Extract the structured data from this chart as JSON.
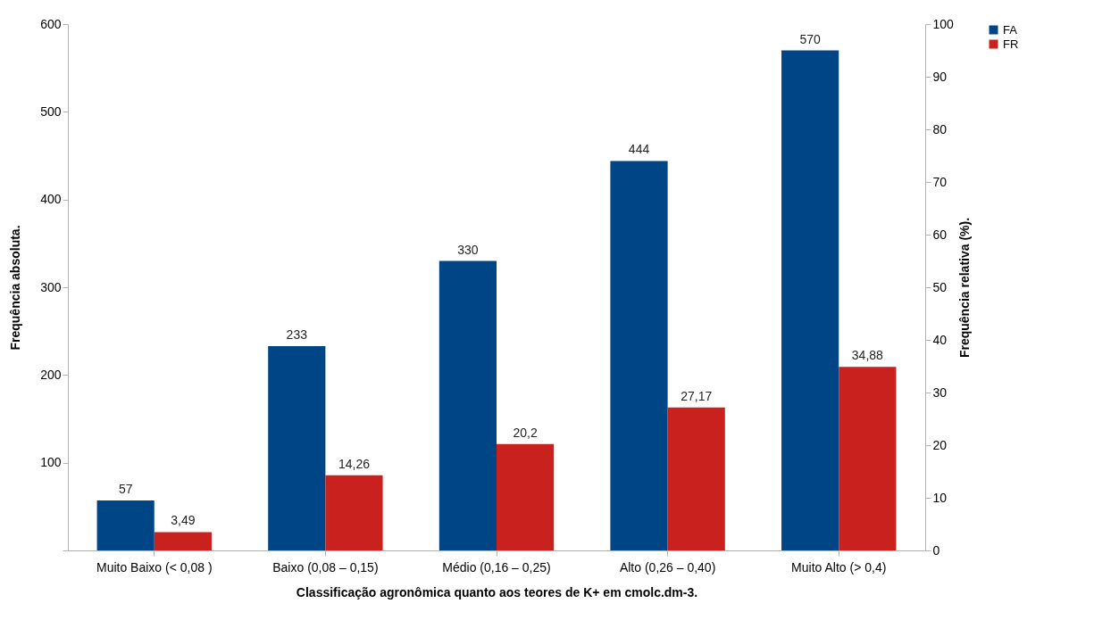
{
  "chart_data": {
    "type": "bar",
    "xlabel": "Classificação agronômica quanto aos teores de K+ em cmolc.dm-3.",
    "ylabel": "Frequência absoluta.",
    "y2label": "Frequência relativa (%).",
    "categories": [
      "Muito Baixo (< 0,08 )",
      "Baixo (0,08 – 0,15)",
      "Médio (0,16 – 0,25)",
      "Alto (0,26 – 0,40)",
      "Muito Alto (> 0,4)"
    ],
    "series": [
      {
        "name": "FA",
        "color": "#004586",
        "values": [
          57,
          233,
          330,
          444,
          570
        ],
        "value_labels": [
          "57",
          "233",
          "330",
          "444",
          "570"
        ]
      },
      {
        "name": "FR",
        "color": "#c9211e",
        "axis": "y2",
        "values": [
          3.49,
          14.26,
          20.2,
          27.17,
          34.88
        ],
        "value_labels": [
          "3,49",
          "14,26",
          "20,2",
          "27,17",
          "34,88"
        ]
      }
    ],
    "ylim": [
      0,
      600
    ],
    "yticks": [
      {
        "value": 0,
        "label": null
      },
      100,
      200,
      300,
      400,
      500,
      600
    ],
    "y2lim": [
      0,
      100
    ],
    "y2ticks": [
      0,
      10,
      20,
      30,
      40,
      50,
      60,
      70,
      80,
      90,
      100
    ],
    "grid": false,
    "legend": "right"
  }
}
